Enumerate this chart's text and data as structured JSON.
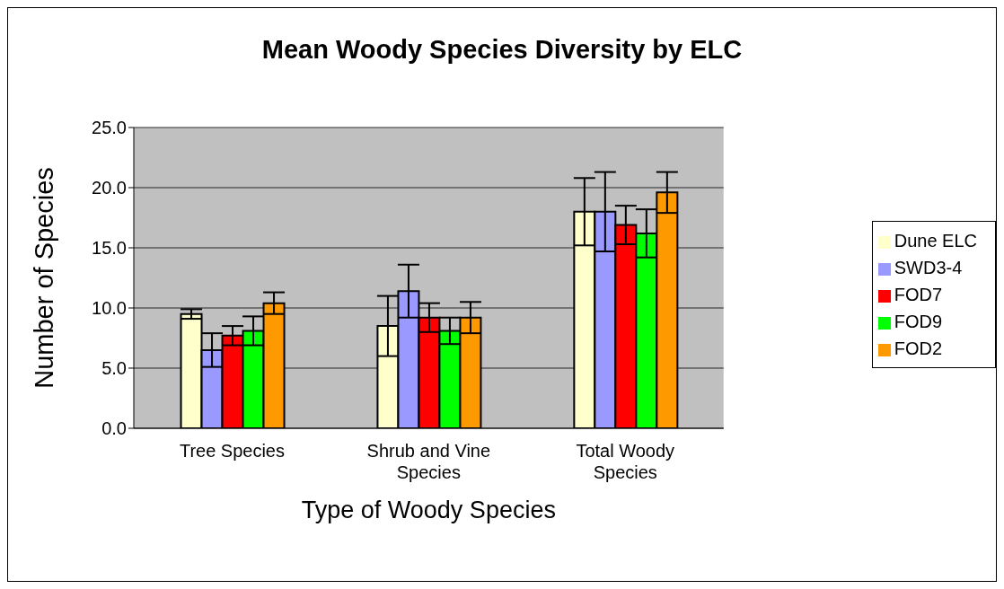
{
  "chart_data": {
    "type": "bar",
    "title": "Mean Woody Species Diversity by ELC",
    "xlabel": "Type of Woody Species",
    "ylabel": "Number of Species",
    "categories": [
      "Tree Species",
      "Shrub and Vine Species",
      "Total Woody Species"
    ],
    "series": [
      {
        "name": "Dune ELC",
        "color": "#ffffcc",
        "values": [
          9.5,
          8.5,
          18.0
        ],
        "errors": [
          0.4,
          2.5,
          2.8
        ]
      },
      {
        "name": "SWD3-4",
        "color": "#9999ff",
        "values": [
          6.5,
          11.4,
          18.0
        ],
        "errors": [
          1.4,
          2.2,
          3.3
        ]
      },
      {
        "name": "FOD7",
        "color": "#ff0000",
        "values": [
          7.7,
          9.2,
          16.9
        ],
        "errors": [
          0.8,
          1.2,
          1.6
        ]
      },
      {
        "name": "FOD9",
        "color": "#00ff00",
        "values": [
          8.1,
          8.1,
          16.2
        ],
        "errors": [
          1.2,
          1.1,
          2.0
        ]
      },
      {
        "name": "FOD2",
        "color": "#ff9900",
        "values": [
          10.4,
          9.2,
          19.6
        ],
        "errors": [
          0.9,
          1.3,
          1.7
        ]
      }
    ],
    "ylim": [
      0,
      25
    ],
    "yticks": [
      {
        "value": 0,
        "label": "0.0"
      },
      {
        "value": 5,
        "label": "5.0"
      },
      {
        "value": 10,
        "label": "10.0"
      },
      {
        "value": 15,
        "label": "15.0"
      },
      {
        "value": 20,
        "label": "20.0"
      },
      {
        "value": 25,
        "label": "25.0"
      }
    ],
    "grid": "y",
    "legend": "right"
  }
}
